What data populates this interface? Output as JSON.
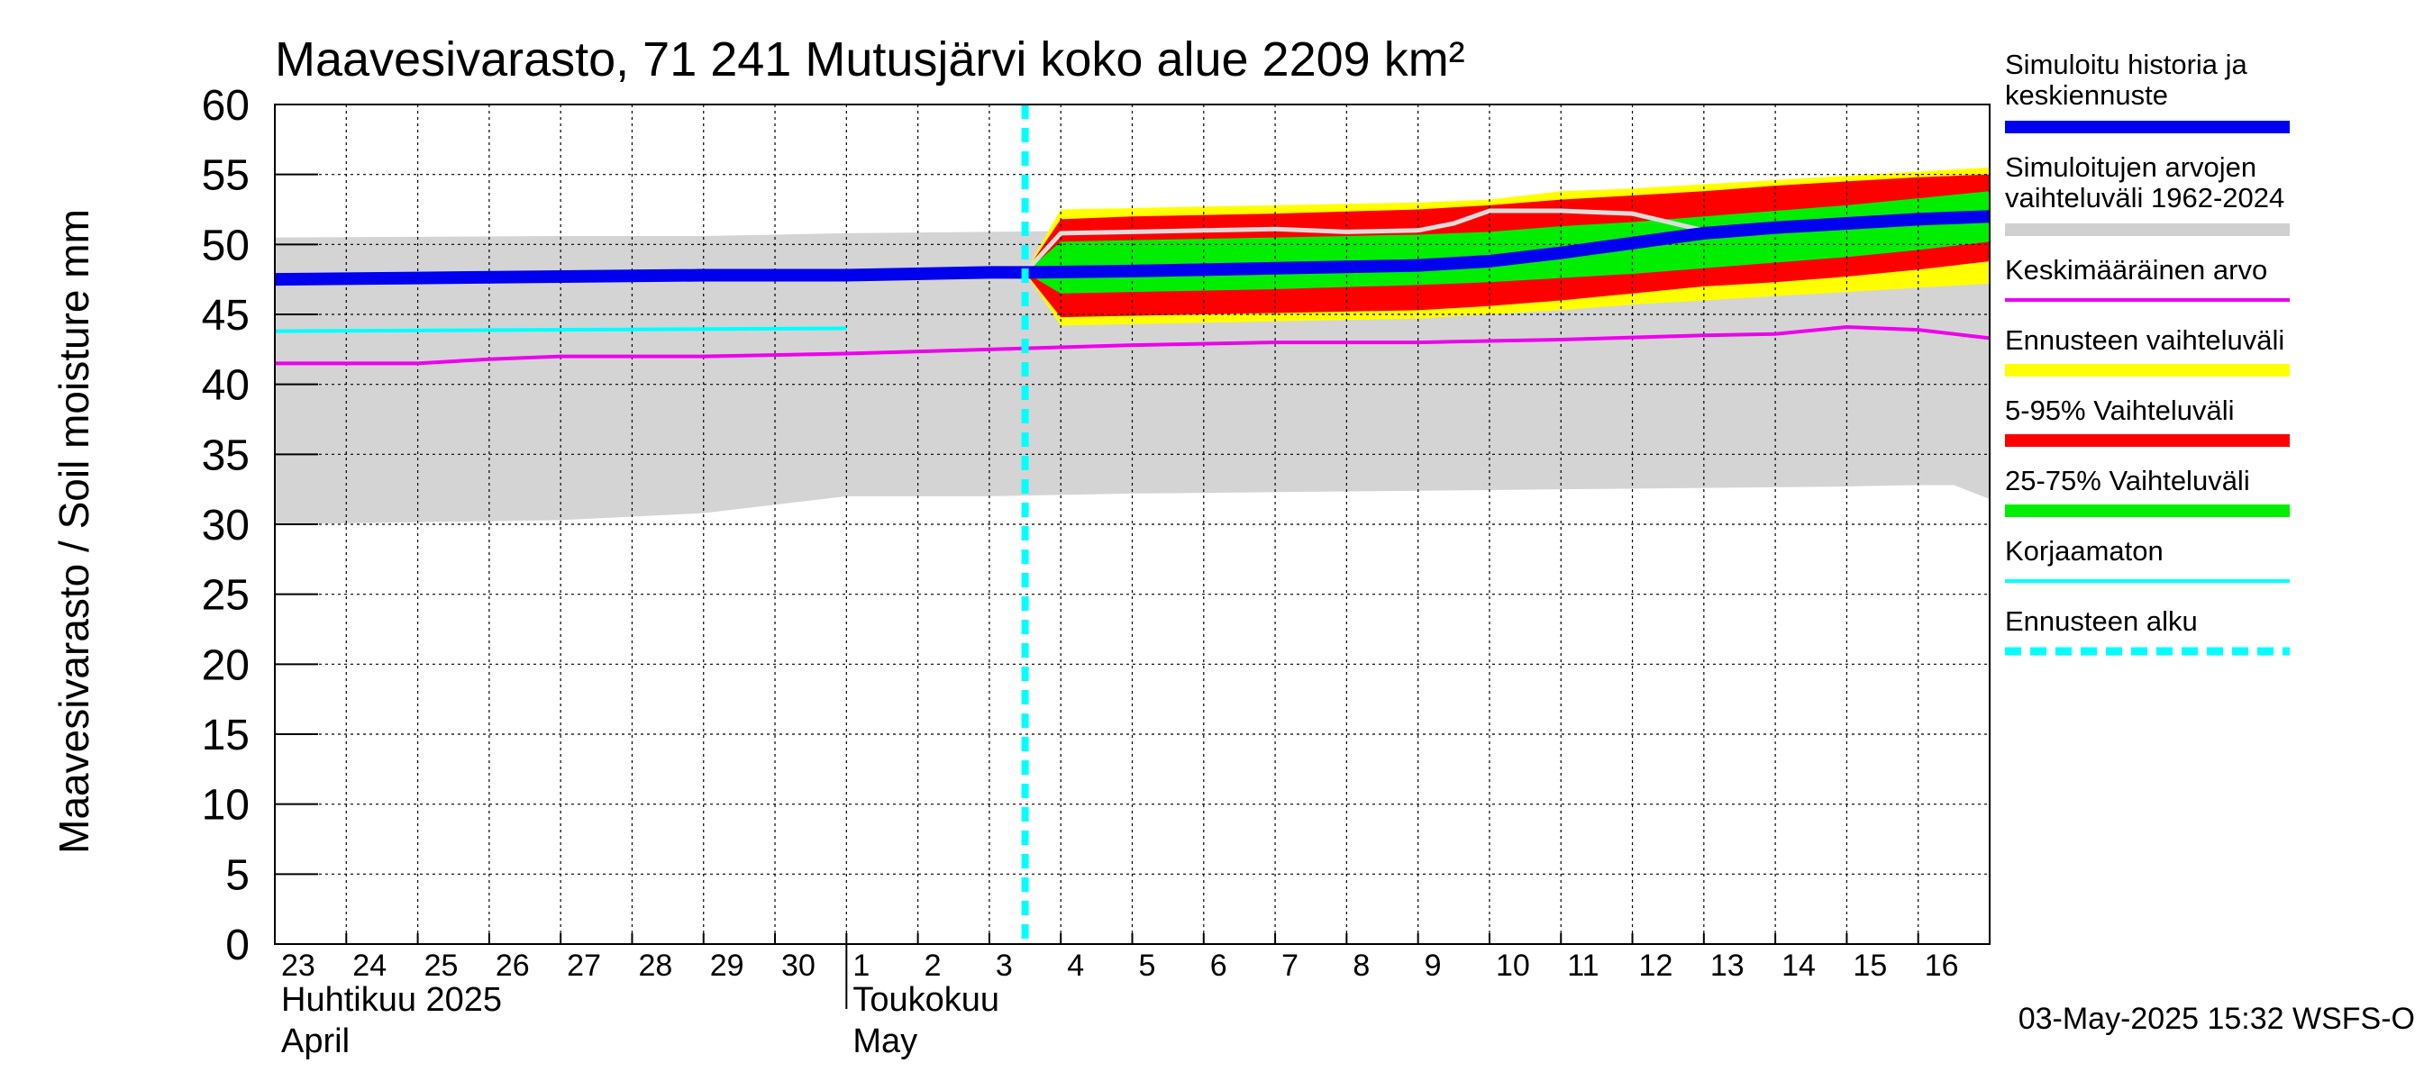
{
  "chart_data": {
    "type": "area",
    "title": "Maavesivarasto, 71 241 Mutusjärvi koko alue 2209 km²",
    "ylabel": "Maavesivarasto / Soil moisture   mm",
    "ylim": [
      0,
      60
    ],
    "yticks": [
      "0",
      "5",
      "10",
      "15",
      "20",
      "25",
      "30",
      "35",
      "40",
      "45",
      "50",
      "55",
      "60"
    ],
    "x_day_labels": [
      "23",
      "24",
      "25",
      "26",
      "27",
      "28",
      "29",
      "30",
      "1",
      "2",
      "3",
      "4",
      "5",
      "6",
      "7",
      "8",
      "9",
      "10",
      "11",
      "12",
      "13",
      "14",
      "15",
      "16"
    ],
    "x_range_days": [
      0,
      24
    ],
    "month_labels": [
      {
        "fi": "Huhtikuu  2025",
        "en": "April",
        "start_day": 0
      },
      {
        "fi": "Toukokuu",
        "en": "May",
        "start_day": 8
      }
    ],
    "forecast_start_day": 10.5,
    "grid": true,
    "legend_position": "right",
    "legend": [
      {
        "label": "Simuloitu historia ja keskiennuste",
        "color": "#0000ee",
        "style": "thick"
      },
      {
        "label": "Simuloitujen arvojen vaihteluväli 1962-2024",
        "color": "#d0d0d0",
        "style": "thick"
      },
      {
        "label": "Keskimääräinen arvo",
        "color": "#ee00ee",
        "style": "thin"
      },
      {
        "label": "Ennusteen vaihteluväli",
        "color": "#ffff00",
        "style": "thick"
      },
      {
        "label": "5-95% Vaihteluväli",
        "color": "#ff0000",
        "style": "thick"
      },
      {
        "label": "25-75% Vaihteluväli",
        "color": "#00ee00",
        "style": "thick"
      },
      {
        "label": "Korjaamaton",
        "color": "#00ffff",
        "style": "thin"
      },
      {
        "label": "Ennusteen alku",
        "color": "#00ffff",
        "style": "dashed"
      }
    ],
    "historical_range": {
      "x": [
        0,
        4,
        6,
        7,
        8,
        10,
        12,
        14,
        16,
        18,
        20,
        22,
        23,
        23.5,
        24
      ],
      "upper": [
        50.5,
        50.6,
        50.6,
        50.7,
        50.8,
        50.9,
        51.0,
        51.5,
        52.0,
        52.6,
        53.0,
        53.6,
        53.9,
        54.0,
        54.0
      ],
      "lower": [
        30.0,
        30.3,
        30.8,
        31.4,
        32.0,
        32.0,
        32.2,
        32.3,
        32.4,
        32.5,
        32.6,
        32.7,
        32.8,
        32.8,
        31.8
      ]
    },
    "forecast_envelope": {
      "x": [
        10.5,
        11,
        12,
        14,
        16,
        17,
        18,
        19,
        20,
        21,
        22,
        23,
        24
      ],
      "max": [
        48.0,
        52.5,
        52.6,
        52.8,
        53.0,
        53.2,
        53.8,
        54.0,
        54.3,
        54.6,
        54.9,
        55.2,
        55.5
      ],
      "p95": [
        48.0,
        51.8,
        52.0,
        52.2,
        52.5,
        52.8,
        53.2,
        53.5,
        53.8,
        54.2,
        54.5,
        54.8,
        55.0
      ],
      "p75": [
        48.0,
        50.2,
        50.3,
        50.5,
        50.7,
        50.9,
        51.3,
        51.6,
        52.0,
        52.4,
        52.8,
        53.3,
        53.8
      ],
      "p25": [
        48.0,
        46.5,
        46.6,
        46.8,
        47.1,
        47.3,
        47.6,
        47.9,
        48.3,
        48.7,
        49.1,
        49.6,
        50.2
      ],
      "p5": [
        48.0,
        44.8,
        44.9,
        45.1,
        45.3,
        45.6,
        46.0,
        46.5,
        47.0,
        47.3,
        47.7,
        48.2,
        48.8
      ],
      "min": [
        48.0,
        44.2,
        44.3,
        44.5,
        44.7,
        45.0,
        45.3,
        45.7,
        46.0,
        46.3,
        46.6,
        46.9,
        47.2
      ]
    },
    "series": [
      {
        "name": "Simuloitu historia ja keskiennuste",
        "x": [
          0,
          2,
          4,
          6,
          8,
          10,
          10.5,
          12,
          14,
          16,
          17,
          18,
          19,
          20,
          21,
          22,
          23,
          24
        ],
        "values": [
          47.5,
          47.6,
          47.7,
          47.8,
          47.8,
          48.0,
          48.0,
          48.1,
          48.3,
          48.5,
          48.8,
          49.4,
          50.1,
          50.8,
          51.2,
          51.5,
          51.8,
          52.0
        ]
      },
      {
        "name": "Keskimääräinen arvo",
        "x": [
          0,
          2,
          3,
          4,
          6,
          8,
          10,
          12,
          14,
          16,
          18,
          20,
          21,
          22,
          23,
          24
        ],
        "values": [
          41.5,
          41.5,
          41.8,
          42.0,
          42.0,
          42.2,
          42.5,
          42.8,
          43.0,
          43.0,
          43.2,
          43.5,
          43.6,
          44.1,
          43.9,
          43.3
        ]
      },
      {
        "name": "Korjaamaton",
        "x": [
          0,
          8
        ],
        "values": [
          43.8,
          44.0
        ]
      },
      {
        "name": "Simulated mean (light line)",
        "x": [
          10.5,
          11,
          12,
          13,
          14,
          15,
          16,
          16.5,
          17,
          18,
          19,
          20
        ],
        "values": [
          48.0,
          50.8,
          50.9,
          51.0,
          51.1,
          50.9,
          51.0,
          51.5,
          52.4,
          52.4,
          52.2,
          51.0
        ]
      }
    ]
  },
  "footer": {
    "timestamp": "03-May-2025 15:32 WSFS-O"
  }
}
